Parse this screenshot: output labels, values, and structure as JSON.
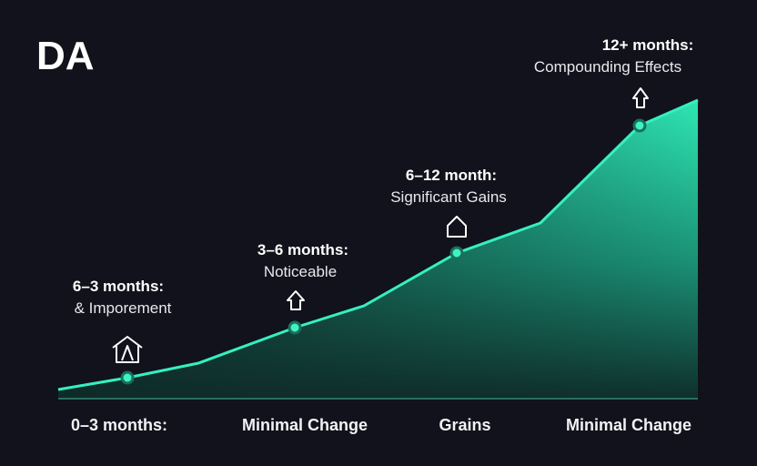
{
  "title": "DA",
  "milestones": [
    {
      "heading": "6–3 months:",
      "text": "& Imporement"
    },
    {
      "heading": "3–6 months:",
      "text": "Noticeable"
    },
    {
      "heading": "6–12 month:",
      "text": "Significant Gains"
    },
    {
      "heading": "12+ months:",
      "text": "Compounding Effects"
    }
  ],
  "axis_labels": [
    "0–3 months:",
    "Minimal Change",
    "Grains",
    "Minimal Change"
  ]
}
